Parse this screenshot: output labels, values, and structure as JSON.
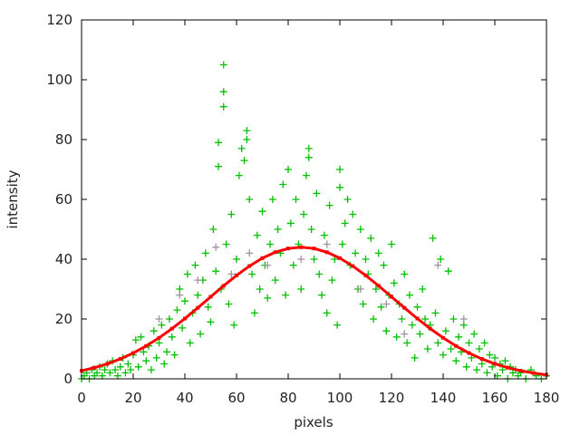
{
  "chart_data": {
    "type": "scatter",
    "title": "",
    "xlabel": "pixels",
    "ylabel": "intensity",
    "xlim": [
      0,
      180
    ],
    "ylim": [
      0,
      120
    ],
    "xticks": [
      0,
      20,
      40,
      60,
      80,
      100,
      120,
      140,
      160,
      180
    ],
    "yticks": [
      0,
      20,
      40,
      60,
      80,
      100,
      120
    ],
    "grid": false,
    "legend": "none",
    "series": [
      {
        "marker": "plus",
        "color": "#00c000",
        "points": [
          [
            0,
            0
          ],
          [
            1,
            1
          ],
          [
            2,
            2
          ],
          [
            3,
            0
          ],
          [
            4,
            3
          ],
          [
            5,
            1
          ],
          [
            6,
            2
          ],
          [
            7,
            4
          ],
          [
            8,
            1
          ],
          [
            9,
            3
          ],
          [
            10,
            5
          ],
          [
            11,
            2
          ],
          [
            12,
            6
          ],
          [
            13,
            3
          ],
          [
            14,
            1
          ],
          [
            15,
            4
          ],
          [
            16,
            7
          ],
          [
            17,
            2
          ],
          [
            18,
            5
          ],
          [
            19,
            3
          ],
          [
            20,
            8
          ],
          [
            21,
            13
          ],
          [
            22,
            4
          ],
          [
            23,
            14
          ],
          [
            24,
            9
          ],
          [
            25,
            6
          ],
          [
            26,
            11
          ],
          [
            27,
            3
          ],
          [
            28,
            16
          ],
          [
            29,
            7
          ],
          [
            30,
            12
          ],
          [
            31,
            18
          ],
          [
            32,
            5
          ],
          [
            33,
            9
          ],
          [
            34,
            20
          ],
          [
            35,
            14
          ],
          [
            36,
            8
          ],
          [
            37,
            23
          ],
          [
            38,
            30
          ],
          [
            39,
            17
          ],
          [
            40,
            26
          ],
          [
            41,
            35
          ],
          [
            42,
            12
          ],
          [
            43,
            22
          ],
          [
            44,
            38
          ],
          [
            45,
            28
          ],
          [
            46,
            15
          ],
          [
            47,
            33
          ],
          [
            48,
            42
          ],
          [
            49,
            24
          ],
          [
            50,
            19
          ],
          [
            51,
            50
          ],
          [
            52,
            36
          ],
          [
            53,
            79
          ],
          [
            53,
            71
          ],
          [
            54,
            30
          ],
          [
            55,
            105
          ],
          [
            55,
            96
          ],
          [
            55,
            91
          ],
          [
            56,
            45
          ],
          [
            57,
            25
          ],
          [
            58,
            55
          ],
          [
            59,
            18
          ],
          [
            60,
            40
          ],
          [
            61,
            68
          ],
          [
            62,
            77
          ],
          [
            63,
            73
          ],
          [
            64,
            83
          ],
          [
            64,
            80
          ],
          [
            65,
            60
          ],
          [
            66,
            35
          ],
          [
            67,
            22
          ],
          [
            68,
            48
          ],
          [
            69,
            30
          ],
          [
            70,
            56
          ],
          [
            71,
            38
          ],
          [
            72,
            27
          ],
          [
            73,
            45
          ],
          [
            74,
            60
          ],
          [
            75,
            33
          ],
          [
            76,
            50
          ],
          [
            77,
            42
          ],
          [
            78,
            65
          ],
          [
            79,
            28
          ],
          [
            80,
            70
          ],
          [
            81,
            52
          ],
          [
            82,
            38
          ],
          [
            83,
            60
          ],
          [
            84,
            45
          ],
          [
            85,
            30
          ],
          [
            86,
            55
          ],
          [
            87,
            68
          ],
          [
            88,
            77
          ],
          [
            88,
            74
          ],
          [
            89,
            50
          ],
          [
            90,
            40
          ],
          [
            91,
            62
          ],
          [
            92,
            35
          ],
          [
            93,
            28
          ],
          [
            94,
            48
          ],
          [
            95,
            22
          ],
          [
            96,
            58
          ],
          [
            97,
            33
          ],
          [
            98,
            40
          ],
          [
            99,
            18
          ],
          [
            100,
            70
          ],
          [
            100,
            64
          ],
          [
            101,
            45
          ],
          [
            102,
            52
          ],
          [
            103,
            60
          ],
          [
            104,
            38
          ],
          [
            105,
            55
          ],
          [
            106,
            42
          ],
          [
            107,
            30
          ],
          [
            108,
            50
          ],
          [
            109,
            25
          ],
          [
            110,
            40
          ],
          [
            111,
            35
          ],
          [
            112,
            47
          ],
          [
            113,
            20
          ],
          [
            114,
            30
          ],
          [
            115,
            42
          ],
          [
            116,
            24
          ],
          [
            117,
            38
          ],
          [
            118,
            16
          ],
          [
            119,
            28
          ],
          [
            120,
            45
          ],
          [
            121,
            32
          ],
          [
            122,
            14
          ],
          [
            123,
            25
          ],
          [
            124,
            20
          ],
          [
            125,
            35
          ],
          [
            126,
            12
          ],
          [
            127,
            28
          ],
          [
            128,
            18
          ],
          [
            129,
            7
          ],
          [
            130,
            24
          ],
          [
            131,
            15
          ],
          [
            132,
            30
          ],
          [
            133,
            20
          ],
          [
            134,
            10
          ],
          [
            135,
            18
          ],
          [
            136,
            47
          ],
          [
            137,
            22
          ],
          [
            138,
            12
          ],
          [
            139,
            40
          ],
          [
            140,
            8
          ],
          [
            141,
            16
          ],
          [
            142,
            36
          ],
          [
            143,
            10
          ],
          [
            144,
            20
          ],
          [
            145,
            6
          ],
          [
            146,
            14
          ],
          [
            147,
            9
          ],
          [
            148,
            18
          ],
          [
            149,
            4
          ],
          [
            150,
            12
          ],
          [
            151,
            7
          ],
          [
            152,
            15
          ],
          [
            153,
            3
          ],
          [
            154,
            10
          ],
          [
            155,
            5
          ],
          [
            156,
            12
          ],
          [
            157,
            2
          ],
          [
            158,
            8
          ],
          [
            159,
            4
          ],
          [
            160,
            7
          ],
          [
            161,
            1
          ],
          [
            162,
            5
          ],
          [
            163,
            3
          ],
          [
            164,
            6
          ],
          [
            165,
            0
          ],
          [
            166,
            4
          ],
          [
            167,
            2
          ],
          [
            168,
            3
          ],
          [
            169,
            1
          ],
          [
            170,
            2
          ],
          [
            172,
            0
          ],
          [
            174,
            3
          ],
          [
            176,
            1
          ],
          [
            178,
            0
          ],
          [
            180,
            1
          ]
        ]
      },
      {
        "marker": "plus",
        "color": "#a090a0",
        "points": [
          [
            30,
            20
          ],
          [
            38,
            28
          ],
          [
            45,
            33
          ],
          [
            52,
            44
          ],
          [
            58,
            35
          ],
          [
            65,
            42
          ],
          [
            72,
            38
          ],
          [
            85,
            40
          ],
          [
            95,
            45
          ],
          [
            108,
            30
          ],
          [
            118,
            25
          ],
          [
            125,
            15
          ],
          [
            138,
            38
          ],
          [
            148,
            20
          ],
          [
            160,
            5
          ]
        ]
      },
      {
        "marker": "square",
        "color": "#ff0000",
        "x": [
          0,
          5,
          10,
          15,
          20,
          25,
          30,
          35,
          40,
          45,
          50,
          55,
          60,
          65,
          70,
          75,
          80,
          85,
          90,
          95,
          100,
          105,
          110,
          115,
          120,
          125,
          130,
          135,
          140,
          145,
          150,
          155,
          160,
          165,
          170,
          175,
          180
        ],
        "y": [
          2.71,
          3.73,
          5.02,
          6.65,
          8.62,
          10.97,
          13.7,
          16.77,
          20.15,
          23.73,
          27.43,
          31.1,
          34.58,
          37.7,
          40.34,
          42.33,
          43.58,
          44.0,
          43.58,
          42.33,
          40.34,
          37.7,
          34.58,
          31.1,
          27.43,
          23.73,
          20.15,
          16.77,
          13.7,
          10.97,
          8.62,
          6.65,
          5.02,
          3.73,
          2.71,
          1.93,
          1.34
        ]
      }
    ]
  }
}
